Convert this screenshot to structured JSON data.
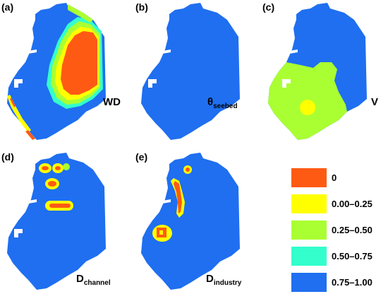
{
  "panels": [
    {
      "tag": "(a)",
      "var_main": "WD",
      "var_sub": ""
    },
    {
      "tag": "(b)",
      "var_main": "θ",
      "var_sub": "seebed"
    },
    {
      "tag": "(c)",
      "var_main": "V",
      "var_sub": ""
    },
    {
      "tag": "(d)",
      "var_main": "D",
      "var_sub": "channel"
    },
    {
      "tag": "(e)",
      "var_main": "D",
      "var_sub": "industry"
    }
  ],
  "legend": [
    {
      "label": "0",
      "color": "#ff5a14"
    },
    {
      "label": "0.00–0.25",
      "color": "#ffff00"
    },
    {
      "label": "0.25–0.50",
      "color": "#aaff32"
    },
    {
      "label": "0.50–0.75",
      "color": "#33ffcc"
    },
    {
      "label": "0.75–1.00",
      "color": "#1f6ff0"
    }
  ],
  "colors": {
    "blue": "#1f6ff0",
    "cyan": "#33ffcc",
    "green": "#aaff32",
    "yellow": "#ffff00",
    "orange": "#ff5a14"
  }
}
